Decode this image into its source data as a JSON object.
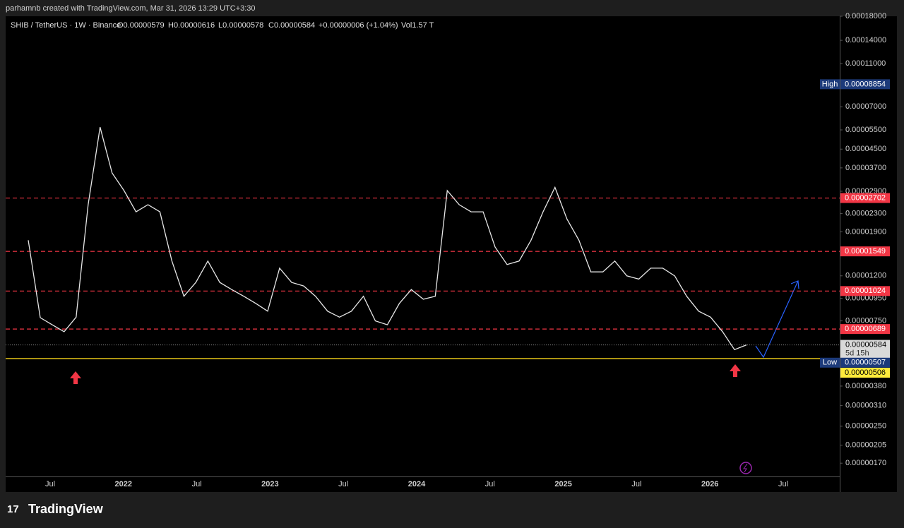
{
  "header": {
    "credit": "parhamnb created with TradingView.com, Mar 31, 2026 13:29 UTC+3:30"
  },
  "legend": {
    "symbol": "SHIB / TetherUS · 1W · Binance",
    "open": "O0.00000579",
    "high": "H0.00000616",
    "low": "L0.00000578",
    "close": "C0.00000584",
    "change": "+0.00000006 (+1.04%)",
    "volume": "Vol1.57 T"
  },
  "chart_data": {
    "type": "line",
    "log_scale": true,
    "color": "#e6e6e6",
    "ylim": [
      1.48e-06,
      0.00018
    ],
    "yticks": [
      {
        "value": 0.00018,
        "label": "0.00018000"
      },
      {
        "value": 0.00014,
        "label": "0.00014000"
      },
      {
        "value": 0.00011,
        "label": "0.00011000"
      },
      {
        "value": 7e-05,
        "label": "0.00007000"
      },
      {
        "value": 5.5e-05,
        "label": "0.00005500"
      },
      {
        "value": 4.5e-05,
        "label": "0.00004500"
      },
      {
        "value": 3.7e-05,
        "label": "0.00003700"
      },
      {
        "value": 2.9e-05,
        "label": "0.00002900"
      },
      {
        "value": 2.3e-05,
        "label": "0.00002300"
      },
      {
        "value": 1.9e-05,
        "label": "0.00001900"
      },
      {
        "value": 1.2e-05,
        "label": "0.00001200"
      },
      {
        "value": 9.5e-06,
        "label": "0.00000950"
      },
      {
        "value": 7.5e-06,
        "label": "0.00000750"
      },
      {
        "value": 3.8e-06,
        "label": "0.00000380"
      },
      {
        "value": 3.1e-06,
        "label": "0.00000310"
      },
      {
        "value": 2.5e-06,
        "label": "0.00000250"
      },
      {
        "value": 2.05e-06,
        "label": "0.00000205"
      },
      {
        "value": 1.7e-06,
        "label": "0.00000170"
      }
    ],
    "xticks": [
      "Jul",
      "2022",
      "Jul",
      "2023",
      "Jul",
      "2024",
      "Jul",
      "2025",
      "Jul",
      "2026",
      "Jul"
    ],
    "series": [
      {
        "name": "SHIB / TetherUS",
        "values": [
          1.74e-05,
          7.76e-06,
          7.2e-06,
          6.7e-06,
          7.8e-06,
          2.52e-05,
          5.66e-05,
          3.51e-05,
          2.92e-05,
          2.34e-05,
          2.52e-05,
          2.34e-05,
          1.4e-05,
          9.7e-06,
          1.12e-05,
          1.4e-05,
          1.12e-05,
          1.04e-05,
          9.7e-06,
          9e-06,
          8.3e-06,
          1.3e-05,
          1.12e-05,
          1.08e-05,
          9.7e-06,
          8.3e-06,
          7.8e-06,
          8.3e-06,
          9.7e-06,
          7.5e-06,
          7.2e-06,
          9e-06,
          1.04e-05,
          9.4e-06,
          9.7e-06,
          2.92e-05,
          2.52e-05,
          2.34e-05,
          2.34e-05,
          1.62e-05,
          1.35e-05,
          1.4e-05,
          1.74e-05,
          2.34e-05,
          3.02e-05,
          2.17e-05,
          1.74e-05,
          1.25e-05,
          1.25e-05,
          1.4e-05,
          1.2e-05,
          1.16e-05,
          1.3e-05,
          1.3e-05,
          1.2e-05,
          9.7e-06,
          8.3e-06,
          7.8e-06,
          6.7e-06,
          5.56e-06,
          5.84e-06
        ]
      }
    ],
    "levels": [
      {
        "value": 2.702e-05,
        "label": "0.00002702"
      },
      {
        "value": 1.549e-05,
        "label": "0.00001549"
      },
      {
        "value": 1.024e-05,
        "label": "0.00001024"
      },
      {
        "value": 6.89e-06,
        "label": "0.00000689"
      }
    ],
    "support": {
      "value": 5.06e-06,
      "label": "0.00000506"
    },
    "last_price": {
      "value": 5.84e-06,
      "label": "0.00000584",
      "countdown": "5d 15h"
    },
    "high_marker": {
      "name": "High",
      "value": 8.854e-05,
      "label": "0.00008854"
    },
    "low_marker": {
      "name": "Low",
      "value": 5.07e-06,
      "label": "0.00000507"
    }
  },
  "footer": {
    "brand": "TradingView"
  }
}
